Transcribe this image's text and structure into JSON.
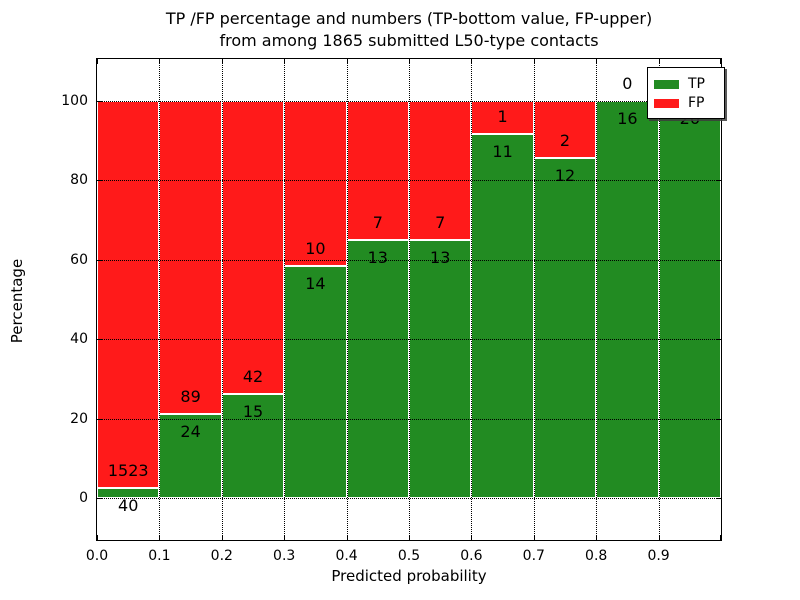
{
  "title": {
    "line1": "TP /FP percentage and numbers (TP-bottom value, FP-upper)",
    "line2": "from among 1865 submitted L50-type contacts"
  },
  "axes": {
    "ylabel": "Percentage",
    "xlabel": "Predicted probability",
    "y_tick_labels": [
      "0",
      "20",
      "40",
      "60",
      "80",
      "100"
    ],
    "y_tick_values": [
      0,
      20,
      40,
      60,
      80,
      100
    ],
    "x_tick_labels": [
      "0.0",
      "0.1",
      "0.2",
      "0.3",
      "0.4",
      "0.5",
      "0.6",
      "0.7",
      "0.8",
      "0.9"
    ],
    "x_tick_values": [
      0.0,
      0.1,
      0.2,
      0.3,
      0.4,
      0.5,
      0.6,
      0.7,
      0.8,
      0.9
    ]
  },
  "legend": {
    "items": [
      {
        "label": "TP",
        "color": "#228b22"
      },
      {
        "label": "FP",
        "color": "#ff1a1a"
      }
    ],
    "position": "upper-right"
  },
  "chart_data": {
    "type": "bar",
    "stacked": true,
    "title": "TP /FP percentage and numbers (TP-bottom value, FP-upper) from among 1865 submitted L50-type contacts",
    "xlabel": "Predicted probability",
    "ylabel": "Percentage",
    "total_contacts": 1865,
    "bin_edges": [
      0.0,
      0.1,
      0.2,
      0.3,
      0.4,
      0.5,
      0.6,
      0.7,
      0.8,
      0.9,
      1.0
    ],
    "categories": [
      "0.0-0.1",
      "0.1-0.2",
      "0.2-0.3",
      "0.3-0.4",
      "0.4-0.5",
      "0.5-0.6",
      "0.6-0.7",
      "0.7-0.8",
      "0.8-0.9",
      "0.9-1.0"
    ],
    "series": [
      {
        "name": "TP",
        "color": "#228b22",
        "counts": [
          40,
          24,
          15,
          14,
          13,
          13,
          11,
          12,
          16,
          26
        ]
      },
      {
        "name": "FP",
        "color": "#ff1a1a",
        "counts": [
          1523,
          89,
          42,
          10,
          7,
          7,
          1,
          2,
          0,
          0
        ]
      }
    ],
    "tp_percent_of_bin": [
      2.6,
      21.2,
      26.3,
      58.3,
      65.0,
      65.0,
      91.7,
      85.7,
      100.0,
      100.0
    ],
    "bar_value_labels_note": "TP count printed below green top edge, FP count printed above it; FP label of last bin (0) hidden behind legend",
    "ylim": [
      -10.5,
      110.5
    ],
    "xlim": [
      0.0,
      1.0
    ],
    "grid": "dotted black, drawn over bars",
    "bar_edge_color": "#ffffff",
    "legend_position": "upper right"
  }
}
